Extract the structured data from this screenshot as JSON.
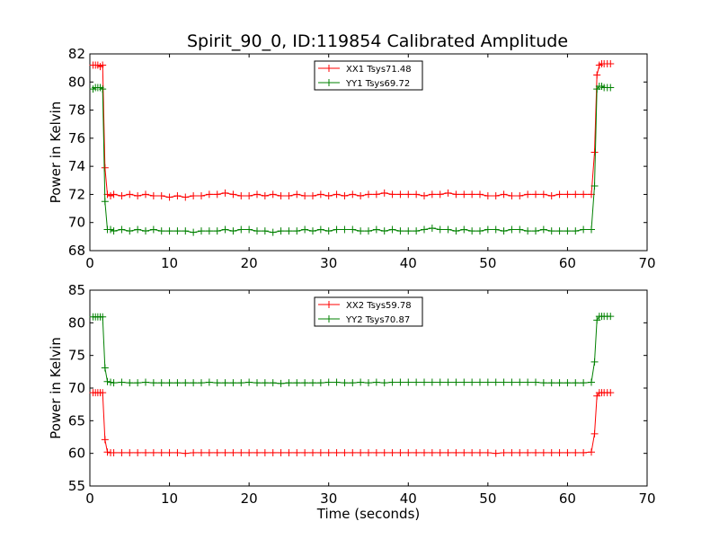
{
  "chart_data": [
    {
      "type": "line",
      "title": "Spirit_90_0, ID:119854 Calibrated Amplitude",
      "xlabel": "",
      "ylabel": "Power in Kelvin",
      "xlim": [
        0,
        70
      ],
      "ylim": [
        68,
        82
      ],
      "xticks": [
        0,
        10,
        20,
        30,
        40,
        50,
        60,
        70
      ],
      "yticks": [
        68,
        70,
        72,
        74,
        76,
        78,
        80,
        82
      ],
      "grid": false,
      "legend_position": "top-center",
      "series": [
        {
          "name": "XX1 Tsys71.48",
          "color": "#ff0000",
          "x": [
            0.4,
            0.7,
            1.0,
            1.3,
            1.6,
            1.9,
            2.2,
            2.6,
            3.0,
            4.0,
            5.0,
            6.0,
            7.0,
            8.0,
            9.0,
            10.0,
            11.0,
            12.0,
            13.0,
            14.0,
            15.0,
            16.0,
            17.0,
            18.0,
            19.0,
            20.0,
            21.0,
            22.0,
            23.0,
            24.0,
            25.0,
            26.0,
            27.0,
            28.0,
            29.0,
            30.0,
            31.0,
            32.0,
            33.0,
            34.0,
            35.0,
            36.0,
            37.0,
            38.0,
            39.0,
            40.0,
            41.0,
            42.0,
            43.0,
            44.0,
            45.0,
            46.0,
            47.0,
            48.0,
            49.0,
            50.0,
            51.0,
            52.0,
            53.0,
            54.0,
            55.0,
            56.0,
            57.0,
            58.0,
            59.0,
            60.0,
            61.0,
            62.0,
            63.0,
            63.4,
            63.7,
            64.0,
            64.3,
            64.6,
            65.0,
            65.4
          ],
          "values": [
            81.2,
            81.2,
            81.2,
            81.1,
            81.2,
            73.9,
            72.0,
            71.9,
            72.0,
            71.9,
            72.0,
            71.9,
            72.0,
            71.9,
            71.9,
            71.8,
            71.9,
            71.8,
            71.9,
            71.9,
            72.0,
            72.0,
            72.1,
            72.0,
            71.9,
            71.9,
            72.0,
            71.9,
            72.0,
            71.9,
            71.9,
            72.0,
            71.9,
            71.9,
            72.0,
            71.9,
            72.0,
            71.9,
            72.0,
            71.9,
            72.0,
            72.0,
            72.1,
            72.0,
            72.0,
            72.0,
            72.0,
            71.9,
            72.0,
            72.0,
            72.1,
            72.0,
            72.0,
            72.0,
            72.0,
            71.9,
            71.9,
            72.0,
            71.9,
            71.9,
            72.0,
            72.0,
            72.0,
            71.9,
            72.0,
            72.0,
            72.0,
            72.0,
            72.0,
            75.0,
            80.5,
            81.2,
            81.3,
            81.3,
            81.3,
            81.3
          ]
        },
        {
          "name": "YY1 Tsys69.72",
          "color": "#008000",
          "x": [
            0.4,
            0.7,
            1.0,
            1.3,
            1.6,
            1.9,
            2.2,
            2.6,
            3.0,
            4.0,
            5.0,
            6.0,
            7.0,
            8.0,
            9.0,
            10.0,
            11.0,
            12.0,
            13.0,
            14.0,
            15.0,
            16.0,
            17.0,
            18.0,
            19.0,
            20.0,
            21.0,
            22.0,
            23.0,
            24.0,
            25.0,
            26.0,
            27.0,
            28.0,
            29.0,
            30.0,
            31.0,
            32.0,
            33.0,
            34.0,
            35.0,
            36.0,
            37.0,
            38.0,
            39.0,
            40.0,
            41.0,
            42.0,
            43.0,
            44.0,
            45.0,
            46.0,
            47.0,
            48.0,
            49.0,
            50.0,
            51.0,
            52.0,
            53.0,
            54.0,
            55.0,
            56.0,
            57.0,
            58.0,
            59.0,
            60.0,
            61.0,
            62.0,
            63.0,
            63.4,
            63.7,
            64.0,
            64.3,
            64.6,
            65.0,
            65.4
          ],
          "values": [
            79.5,
            79.6,
            79.6,
            79.6,
            79.5,
            71.5,
            69.5,
            69.5,
            69.4,
            69.5,
            69.4,
            69.5,
            69.4,
            69.5,
            69.4,
            69.4,
            69.4,
            69.4,
            69.3,
            69.4,
            69.4,
            69.4,
            69.5,
            69.4,
            69.5,
            69.5,
            69.4,
            69.4,
            69.3,
            69.4,
            69.4,
            69.4,
            69.5,
            69.4,
            69.5,
            69.4,
            69.5,
            69.5,
            69.5,
            69.4,
            69.4,
            69.5,
            69.4,
            69.5,
            69.4,
            69.4,
            69.4,
            69.5,
            69.6,
            69.5,
            69.5,
            69.4,
            69.5,
            69.4,
            69.4,
            69.5,
            69.5,
            69.4,
            69.5,
            69.5,
            69.4,
            69.4,
            69.5,
            69.4,
            69.4,
            69.4,
            69.4,
            69.5,
            69.5,
            72.6,
            79.5,
            79.7,
            79.7,
            79.6,
            79.6,
            79.6
          ]
        }
      ]
    },
    {
      "type": "line",
      "title": "",
      "xlabel": "Time (seconds)",
      "ylabel": "Power in Kelvin",
      "xlim": [
        0,
        70
      ],
      "ylim": [
        55,
        85
      ],
      "xticks": [
        0,
        10,
        20,
        30,
        40,
        50,
        60,
        70
      ],
      "yticks": [
        55,
        60,
        65,
        70,
        75,
        80,
        85
      ],
      "grid": false,
      "legend_position": "top-center",
      "series": [
        {
          "name": "XX2 Tsys59.78",
          "color": "#ff0000",
          "x": [
            0.4,
            0.7,
            1.0,
            1.3,
            1.6,
            1.9,
            2.2,
            2.6,
            3.0,
            4.0,
            5.0,
            6.0,
            7.0,
            8.0,
            9.0,
            10.0,
            11.0,
            12.0,
            13.0,
            14.0,
            15.0,
            16.0,
            17.0,
            18.0,
            19.0,
            20.0,
            21.0,
            22.0,
            23.0,
            24.0,
            25.0,
            26.0,
            27.0,
            28.0,
            29.0,
            30.0,
            31.0,
            32.0,
            33.0,
            34.0,
            35.0,
            36.0,
            37.0,
            38.0,
            39.0,
            40.0,
            41.0,
            42.0,
            43.0,
            44.0,
            45.0,
            46.0,
            47.0,
            48.0,
            49.0,
            50.0,
            51.0,
            52.0,
            53.0,
            54.0,
            55.0,
            56.0,
            57.0,
            58.0,
            59.0,
            60.0,
            61.0,
            62.0,
            63.0,
            63.4,
            63.7,
            64.0,
            64.3,
            64.6,
            65.0,
            65.4
          ],
          "values": [
            69.3,
            69.3,
            69.3,
            69.3,
            69.3,
            62.1,
            60.2,
            60.1,
            60.1,
            60.1,
            60.1,
            60.1,
            60.1,
            60.1,
            60.1,
            60.1,
            60.1,
            60.0,
            60.1,
            60.1,
            60.1,
            60.1,
            60.1,
            60.1,
            60.1,
            60.1,
            60.1,
            60.1,
            60.1,
            60.1,
            60.1,
            60.1,
            60.1,
            60.1,
            60.1,
            60.1,
            60.1,
            60.1,
            60.1,
            60.1,
            60.1,
            60.1,
            60.1,
            60.1,
            60.1,
            60.1,
            60.1,
            60.1,
            60.1,
            60.1,
            60.1,
            60.1,
            60.1,
            60.1,
            60.1,
            60.1,
            60.0,
            60.1,
            60.1,
            60.1,
            60.1,
            60.1,
            60.1,
            60.1,
            60.1,
            60.1,
            60.1,
            60.1,
            60.2,
            63.0,
            68.8,
            69.3,
            69.3,
            69.3,
            69.3,
            69.3
          ]
        },
        {
          "name": "YY2 Tsys70.87",
          "color": "#008000",
          "x": [
            0.4,
            0.7,
            1.0,
            1.3,
            1.6,
            1.9,
            2.2,
            2.6,
            3.0,
            4.0,
            5.0,
            6.0,
            7.0,
            8.0,
            9.0,
            10.0,
            11.0,
            12.0,
            13.0,
            14.0,
            15.0,
            16.0,
            17.0,
            18.0,
            19.0,
            20.0,
            21.0,
            22.0,
            23.0,
            24.0,
            25.0,
            26.0,
            27.0,
            28.0,
            29.0,
            30.0,
            31.0,
            32.0,
            33.0,
            34.0,
            35.0,
            36.0,
            37.0,
            38.0,
            39.0,
            40.0,
            41.0,
            42.0,
            43.0,
            44.0,
            45.0,
            46.0,
            47.0,
            48.0,
            49.0,
            50.0,
            51.0,
            52.0,
            53.0,
            54.0,
            55.0,
            56.0,
            57.0,
            58.0,
            59.0,
            60.0,
            61.0,
            62.0,
            63.0,
            63.4,
            63.7,
            64.0,
            64.3,
            64.6,
            65.0,
            65.4
          ],
          "values": [
            80.9,
            80.9,
            80.9,
            80.9,
            80.9,
            73.1,
            71.0,
            70.9,
            70.8,
            70.9,
            70.8,
            70.8,
            70.9,
            70.8,
            70.8,
            70.8,
            70.8,
            70.8,
            70.8,
            70.8,
            70.9,
            70.8,
            70.8,
            70.8,
            70.8,
            70.9,
            70.8,
            70.8,
            70.8,
            70.7,
            70.8,
            70.8,
            70.8,
            70.8,
            70.8,
            70.9,
            70.9,
            70.8,
            70.8,
            70.9,
            70.8,
            70.9,
            70.8,
            70.9,
            70.9,
            70.9,
            70.9,
            70.9,
            70.9,
            70.9,
            70.9,
            70.9,
            70.9,
            70.9,
            70.9,
            70.9,
            70.9,
            70.9,
            70.9,
            70.9,
            70.9,
            70.9,
            70.8,
            70.8,
            70.8,
            70.8,
            70.8,
            70.8,
            70.9,
            74.0,
            80.4,
            81.0,
            81.0,
            81.0,
            81.0,
            81.0
          ]
        }
      ]
    }
  ]
}
